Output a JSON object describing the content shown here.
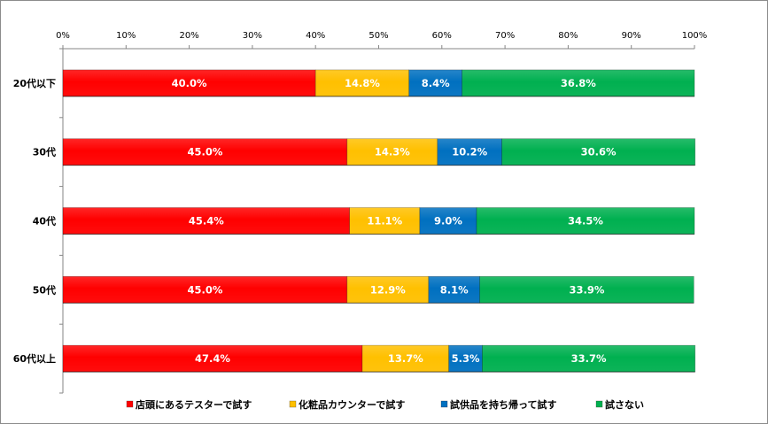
{
  "chart_data": {
    "type": "bar",
    "orientation": "horizontal",
    "stacked": true,
    "categories": [
      "20代以下",
      "30代",
      "40代",
      "50代",
      "60代以上"
    ],
    "x_ticks": [
      "0%",
      "10%",
      "20%",
      "30%",
      "40%",
      "50%",
      "60%",
      "70%",
      "80%",
      "90%",
      "100%"
    ],
    "xlim": [
      0,
      100
    ],
    "grid": false,
    "legend_position": "bottom",
    "series": [
      {
        "name": "店頭にあるテスターで試す",
        "color": "#ff0000",
        "values": [
          40.0,
          45.0,
          45.4,
          45.0,
          47.4
        ],
        "labels": [
          "40.0%",
          "45.0%",
          "45.4%",
          "45.0%",
          "47.4%"
        ]
      },
      {
        "name": "化粧品カウンターで試す",
        "color": "#ffc000",
        "values": [
          14.8,
          14.3,
          11.1,
          12.9,
          13.7
        ],
        "labels": [
          "14.8%",
          "14.3%",
          "11.1%",
          "12.9%",
          "13.7%"
        ]
      },
      {
        "name": "試供品を持ち帰って試す",
        "color": "#0070c0",
        "values": [
          8.4,
          10.2,
          9.0,
          8.1,
          5.3
        ],
        "labels": [
          "8.4%",
          "10.2%",
          "9.0%",
          "8.1%",
          "5.3%"
        ]
      },
      {
        "name": "試さない",
        "color": "#00b050",
        "values": [
          36.8,
          30.6,
          34.5,
          33.9,
          33.7
        ],
        "labels": [
          "36.8%",
          "30.6%",
          "34.5%",
          "33.9%",
          "33.7%"
        ]
      }
    ]
  }
}
